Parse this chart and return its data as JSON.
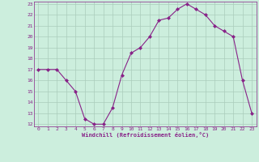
{
  "x": [
    0,
    1,
    2,
    3,
    4,
    5,
    6,
    7,
    8,
    9,
    10,
    11,
    12,
    13,
    14,
    15,
    16,
    17,
    18,
    19,
    20,
    21,
    22,
    23
  ],
  "y": [
    17,
    17,
    17,
    16,
    15,
    12.5,
    12,
    12,
    13.5,
    16.5,
    18.5,
    19,
    20,
    21.5,
    21.7,
    22.5,
    23,
    22.5,
    22,
    21,
    20.5,
    20,
    16,
    13
  ],
  "line_color": "#882288",
  "marker": "D",
  "marker_size": 2.0,
  "bg_color": "#cceedd",
  "grid_color": "#aaccbb",
  "xlabel": "Windchill (Refroidissement éolien,°C)",
  "xlabel_color": "#882288",
  "tick_color": "#882288",
  "ylim": [
    12,
    23
  ],
  "xlim": [
    -0.5,
    23.5
  ],
  "yticks": [
    12,
    13,
    14,
    15,
    16,
    17,
    18,
    19,
    20,
    21,
    22,
    23
  ],
  "xticks": [
    0,
    1,
    2,
    3,
    4,
    5,
    6,
    7,
    8,
    9,
    10,
    11,
    12,
    13,
    14,
    15,
    16,
    17,
    18,
    19,
    20,
    21,
    22,
    23
  ]
}
